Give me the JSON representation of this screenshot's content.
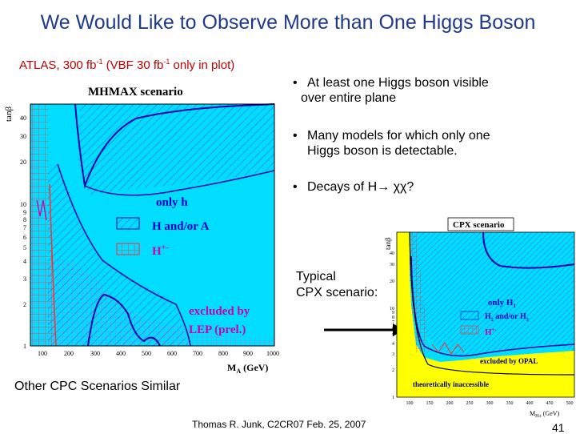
{
  "slide": {
    "title": "We Would Like to Observe More than One Higgs Boson",
    "subtitle_pre": "ATLAS, 300 fb",
    "subtitle_sup1": "-1",
    "subtitle_mid": " (VBF 30 fb",
    "subtitle_sup2": "-1",
    "subtitle_post": " only in plot)",
    "bullets": [
      {
        "line1": "At least one Higgs boson visible",
        "line2": "over entire plane"
      },
      {
        "line1": "Many models for which only one",
        "line2": "Higgs boson is detectable."
      },
      {
        "line1": "Decays of H→ χχ?",
        "line2": ""
      }
    ],
    "typical_line1": "Typical",
    "typical_line2": "CPX scenario:",
    "other_text": "Other CPC Scenarios Similar",
    "footer": "Thomas R. Junk, C2CR07 Feb. 25, 2007",
    "page_number": "41"
  },
  "plot1": {
    "title": "MHMAX scenario",
    "ylabel": "tanβ",
    "xlabel": "M",
    "xlabel_sub": "A",
    "xlabel_unit": " (GeV)",
    "x_ticks": [
      "100",
      "200",
      "300",
      "400",
      "500",
      "600",
      "700",
      "800",
      "900",
      "1000"
    ],
    "y_ticks": [
      "1",
      "2",
      "3",
      "4",
      "5",
      "6",
      "7",
      "8",
      "9",
      "10",
      "20",
      "30",
      "40"
    ],
    "legend_only_h": "only h",
    "legend_H_A": "H and/or A",
    "legend_H_pm": "H",
    "legend_H_pm_sup": "+-",
    "legend_excluded_1": "excluded by",
    "legend_excluded_2": "LEP (prel.)",
    "colors": {
      "only_h": "#00ddff",
      "blue_hatch": "#3355ff",
      "red_hatch": "#ff3030",
      "excluded_text": "#cc00aa",
      "legend_text": "#0000cc"
    }
  },
  "plot2": {
    "title": "CPX scenario",
    "ylabel": "tanβ",
    "xlabel": "M",
    "xlabel_sub": "H±",
    "xlabel_unit": " (GeV)",
    "x_ticks": [
      "100",
      "150",
      "200",
      "250",
      "300",
      "350",
      "400",
      "450",
      "500"
    ],
    "y_ticks": [
      "1",
      "2",
      "3",
      "4",
      "5",
      "6",
      "7",
      "8",
      "9",
      "10",
      "20",
      "30",
      "40"
    ],
    "legend_only_h1": "only H",
    "legend_only_h1_sub": "1",
    "legend_h2h3_pre": "H",
    "legend_h2h3_sub1": "2",
    "legend_h2h3_mid": " and/or H",
    "legend_h2h3_sub2": "3",
    "legend_hpm": "H",
    "legend_hpm_sup": "+-",
    "excluded_text": "excluded by OPAL",
    "inaccessible_text": "theoretically inaccessible",
    "colors": {
      "cyan": "#00ddff",
      "yellow": "#ffff00"
    }
  }
}
